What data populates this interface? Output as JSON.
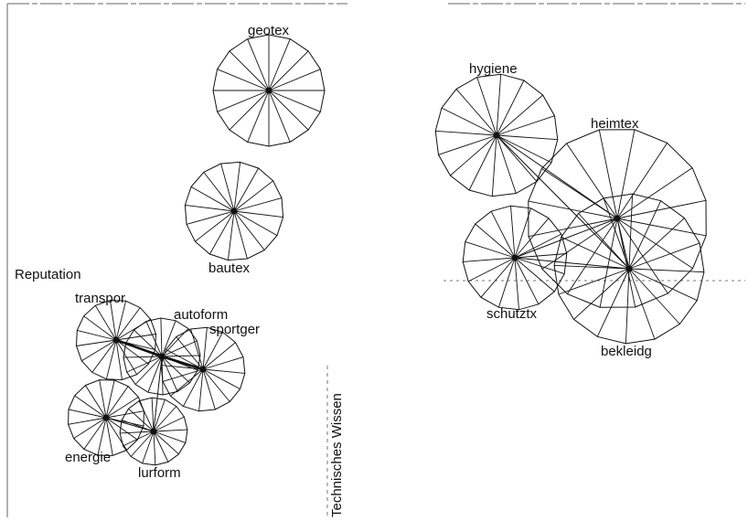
{
  "axes": {
    "left_label": "Reputation",
    "center_label": "Technisches Wissen"
  },
  "nodes": [
    {
      "id": "geotex",
      "label": "geotex"
    },
    {
      "id": "bautex",
      "label": "bautex"
    },
    {
      "id": "transpor",
      "label": "transpor"
    },
    {
      "id": "autoform",
      "label": "autoform"
    },
    {
      "id": "sportger",
      "label": "sportger"
    },
    {
      "id": "energie",
      "label": "energie"
    },
    {
      "id": "lurform",
      "label": "lurform"
    },
    {
      "id": "hygiene",
      "label": "hygiene"
    },
    {
      "id": "heimtex",
      "label": "heimtex"
    },
    {
      "id": "schutztx",
      "label": "schutztx"
    },
    {
      "id": "bekleidg",
      "label": "bekleidg"
    }
  ],
  "links": [
    [
      "transpor",
      "autoform"
    ],
    [
      "autoform",
      "sportger"
    ],
    [
      "transpor",
      "sportger"
    ],
    [
      "autoform",
      "lurform"
    ],
    [
      "energie",
      "lurform"
    ],
    [
      "hygiene",
      "heimtex"
    ],
    [
      "heimtex",
      "bekleidg"
    ],
    [
      "schutztx",
      "heimtex"
    ],
    [
      "schutztx",
      "bekleidg"
    ],
    [
      "hygiene",
      "bekleidg"
    ]
  ],
  "colors": {
    "stroke": "#111111",
    "axis": "#555555",
    "background": "#ffffff"
  }
}
